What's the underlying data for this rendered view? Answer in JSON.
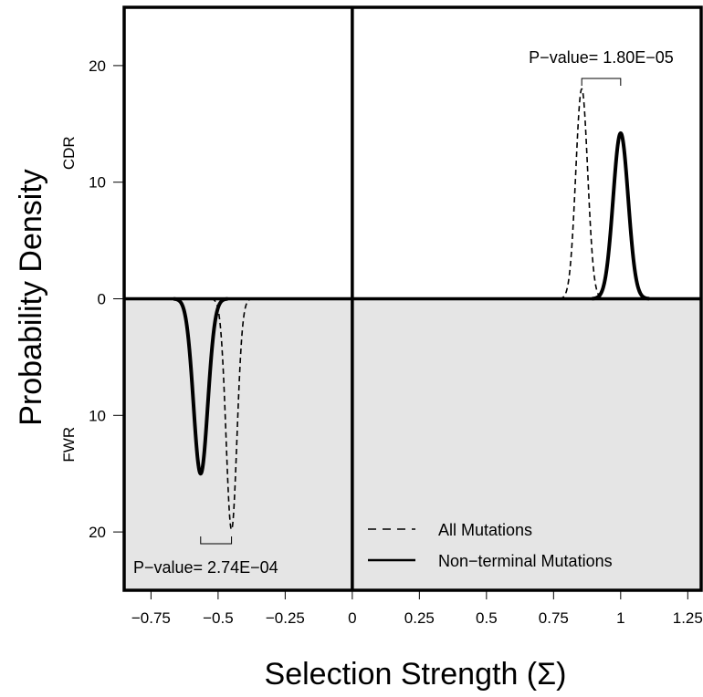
{
  "chart_data": {
    "type": "line",
    "xlabel": "Selection Strength (Σ)",
    "ylabel": "Probability Density",
    "xlim": [
      -0.85,
      1.3
    ],
    "ylim": [
      -25,
      25
    ],
    "x_ticks": [
      -0.75,
      -0.5,
      -0.25,
      0,
      0.25,
      0.5,
      0.75,
      1,
      1.25
    ],
    "x_tick_labels": [
      "−0.75",
      "−0.5",
      "−0.25",
      "0",
      "0.25",
      "0.5",
      "0.75",
      "1",
      "1.25"
    ],
    "y_ticks": [
      20,
      10,
      0,
      -10,
      -20
    ],
    "y_tick_labels": [
      "20",
      "10",
      "0",
      "10",
      "20"
    ],
    "panels": [
      {
        "label": "CDR",
        "region": "upper"
      },
      {
        "label": "FWR",
        "region": "lower",
        "shaded": true,
        "shade_color": "#e5e5e5"
      }
    ],
    "series": [
      {
        "name": "All Mutations",
        "panel": "CDR",
        "style": "dashed",
        "mean": 0.855,
        "peak": 18
      },
      {
        "name": "Non−terminal Mutations",
        "panel": "CDR",
        "style": "solid",
        "mean": 1.0,
        "peak": 14.2
      },
      {
        "name": "All Mutations",
        "panel": "FWR",
        "style": "dashed",
        "mean": -0.45,
        "peak": 19.8
      },
      {
        "name": "Non−terminal Mutations",
        "panel": "FWR",
        "style": "solid",
        "mean": -0.565,
        "peak": 15
      }
    ],
    "annotations": [
      {
        "panel": "CDR",
        "text": "P−value= 1.80E−05",
        "x_from": 0.855,
        "x_to": 1.0
      },
      {
        "panel": "FWR",
        "text": "P−value= 2.74E−04",
        "x_from": -0.565,
        "x_to": -0.45
      }
    ],
    "legend": {
      "position": "bottom-right",
      "entries": [
        {
          "label": "All Mutations",
          "style": "dashed"
        },
        {
          "label": "Non−terminal Mutations",
          "style": "solid"
        }
      ]
    },
    "grid": false
  }
}
